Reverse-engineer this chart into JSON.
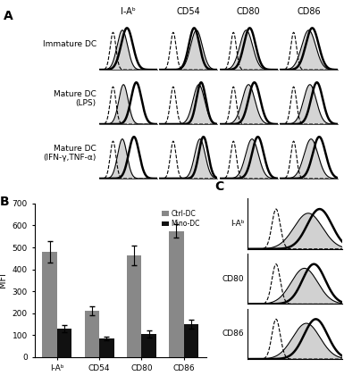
{
  "col_labels": [
    "I-Aᵇ",
    "CD54",
    "CD80",
    "CD86"
  ],
  "row_labels": [
    "Immature DC",
    "Mature DC\n(LPS)",
    "Mature DC\n(IFN-γ,TNF-α)"
  ],
  "bar_categories": [
    "I-Aᵇ",
    "CD54",
    "CD80",
    "CD86"
  ],
  "ctrl_dc_vals": [
    480,
    210,
    465,
    575
  ],
  "mino_dc_vals": [
    130,
    85,
    105,
    150
  ],
  "ctrl_dc_errs": [
    50,
    20,
    45,
    30
  ],
  "mino_dc_errs": [
    15,
    10,
    15,
    20
  ],
  "ctrl_color": "#888888",
  "mino_color": "#111111",
  "ylabel": "MFI",
  "ylim": [
    0,
    700
  ],
  "yticks": [
    0,
    100,
    200,
    300,
    400,
    500,
    600,
    700
  ],
  "c_panel_labels": [
    "I-Aᵇ",
    "CD80",
    "CD86"
  ],
  "background": "#ffffff",
  "hist_params_A": [
    [
      [
        1.2,
        0.25,
        2.0,
        0.45,
        2.4,
        0.5
      ],
      [
        1.2,
        0.25,
        3.2,
        0.5,
        3.0,
        0.45
      ],
      [
        1.2,
        0.25,
        2.3,
        0.55,
        2.6,
        0.5
      ],
      [
        1.2,
        0.25,
        2.5,
        0.6,
        2.8,
        0.55
      ]
    ],
    [
      [
        1.2,
        0.25,
        2.1,
        0.4,
        3.2,
        0.45
      ],
      [
        1.2,
        0.25,
        3.4,
        0.5,
        3.6,
        0.4
      ],
      [
        1.2,
        0.25,
        2.5,
        0.55,
        3.0,
        0.5
      ],
      [
        1.2,
        0.25,
        2.6,
        0.55,
        3.2,
        0.5
      ]
    ],
    [
      [
        1.2,
        0.25,
        2.0,
        0.4,
        3.0,
        0.45
      ],
      [
        1.2,
        0.25,
        3.5,
        0.45,
        3.8,
        0.4
      ],
      [
        1.2,
        0.25,
        2.8,
        0.55,
        3.3,
        0.5
      ],
      [
        1.2,
        0.25,
        2.7,
        0.6,
        3.4,
        0.55
      ]
    ]
  ],
  "hist_params_C": [
    [
      1.5,
      0.22,
      3.2,
      0.75,
      3.8,
      0.65
    ],
    [
      1.5,
      0.22,
      3.0,
      0.7,
      3.5,
      0.6
    ],
    [
      1.5,
      0.22,
      3.1,
      0.72,
      3.6,
      0.62
    ]
  ]
}
